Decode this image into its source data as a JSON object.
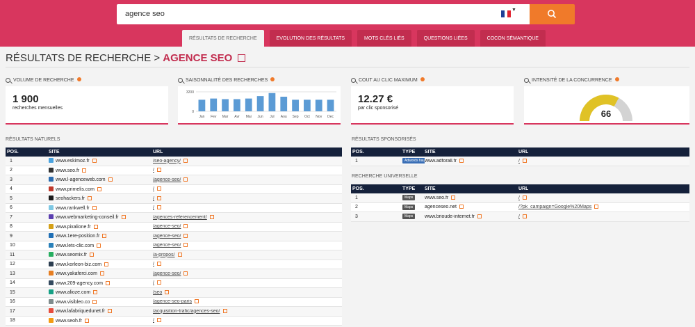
{
  "search": {
    "query": "agence seo"
  },
  "colors": {
    "brand": "#d8365e",
    "accent": "#f07a2a",
    "dark": "#15213b",
    "bar": "#5b9bd5"
  },
  "tabs": [
    "Résultats de recherche",
    "Evolution des résultats",
    "Mots clés liés",
    "Questions liées",
    "Cocon sémantique"
  ],
  "page": {
    "prefix": "RÉSULTATS DE RECHERCHE >",
    "keyword": "AGENCE SEO"
  },
  "metrics": {
    "volume": {
      "label": "VOLUME DE RECHERCHE",
      "value": "1 900",
      "sub": "recherches mensuelles"
    },
    "season": {
      "label": "SAISONNALITÉ DES RECHERCHES"
    },
    "cpc": {
      "label": "COUT AU CLIC MAXIMUM",
      "value": "12.27 €",
      "sub": "par clic sponsorisé"
    },
    "competition": {
      "label": "INTENSITÉ DE LA CONCURRENCE",
      "value": "66"
    }
  },
  "chart_data": {
    "type": "bar",
    "categories": [
      "Jan",
      "Fev",
      "Mar",
      "Avr",
      "Mai",
      "Jun",
      "Jul",
      "Aou",
      "Sep",
      "Oct",
      "Nov",
      "Dec"
    ],
    "values": [
      1900,
      2100,
      2000,
      2000,
      2100,
      2500,
      3000,
      2400,
      1900,
      1900,
      1900,
      1900
    ],
    "ylim": [
      0,
      3200
    ],
    "yticks": [
      0,
      3200
    ]
  },
  "natural": {
    "title": "RÉSULTATS NATURELS",
    "headers": [
      "POS.",
      "SITE",
      "URL"
    ],
    "rows": [
      {
        "pos": "1",
        "site": "www.eskimoz.fr",
        "url": "/seo-agency/",
        "color": "#4aa3df"
      },
      {
        "pos": "2",
        "site": "www.seo.fr",
        "url": "/",
        "color": "#333333"
      },
      {
        "pos": "3",
        "site": "www.l-agenceweb.com",
        "url": "/agence-seo/",
        "color": "#2b6cb0"
      },
      {
        "pos": "4",
        "site": "www.primelis.com",
        "url": "/",
        "color": "#c0392b"
      },
      {
        "pos": "5",
        "site": "seohackers.fr",
        "url": "/",
        "color": "#1a1a1a"
      },
      {
        "pos": "6",
        "site": "www.rankwell.fr",
        "url": "/",
        "color": "#7ec8e3"
      },
      {
        "pos": "7",
        "site": "www.webmarketing-conseil.fr",
        "url": "/agences-referencement/",
        "color": "#5b3fb0"
      },
      {
        "pos": "8",
        "site": "www.pixalione.fr",
        "url": "/agence-seo/",
        "color": "#d4a017"
      },
      {
        "pos": "9",
        "site": "www.1ere-position.fr",
        "url": "/agence-seo/",
        "color": "#1f6fb5"
      },
      {
        "pos": "10",
        "site": "www.lets-clic.com",
        "url": "/agence-seo/",
        "color": "#2980b9"
      },
      {
        "pos": "11",
        "site": "www.seomix.fr",
        "url": "/a-propos/",
        "color": "#27ae60"
      },
      {
        "pos": "12",
        "site": "www.korleon-biz.com",
        "url": "/",
        "color": "#2c3e50"
      },
      {
        "pos": "13",
        "site": "www.yakaferci.com",
        "url": "/agence-seo/",
        "color": "#e67e22"
      },
      {
        "pos": "14",
        "site": "www.209-agency.com",
        "url": "/",
        "color": "#34495e"
      },
      {
        "pos": "15",
        "site": "www.alioze.com",
        "url": "/seo",
        "color": "#16a085"
      },
      {
        "pos": "16",
        "site": "www.visibleo.co",
        "url": "/agence-seo-paris",
        "color": "#7f8c8d"
      },
      {
        "pos": "17",
        "site": "www.lafabriquedunet.fr",
        "url": "/acquisition-trafic/agences-seo/",
        "color": "#e74c3c"
      },
      {
        "pos": "18",
        "site": "www.seoh.fr",
        "url": "/",
        "color": "#f39c12"
      }
    ]
  },
  "sponsored": {
    "title": "RÉSULTATS SPONSORISÉS",
    "headers": [
      "POS.",
      "TYPE",
      "SITE",
      "URL"
    ],
    "rows": [
      {
        "pos": "1",
        "type": "Adwords haut",
        "site": "www.adforall.fr",
        "url": "/"
      }
    ]
  },
  "universal": {
    "title": "RECHERCHE UNIVERSELLE",
    "headers": [
      "POS.",
      "TYPE",
      "SITE",
      "URL"
    ],
    "rows": [
      {
        "pos": "1",
        "type": "Maps",
        "site": "www.seo.fr",
        "url": "/"
      },
      {
        "pos": "2",
        "type": "Maps",
        "site": "agenceseo.net",
        "url": "/?pk_campaign=Google%20Maps"
      },
      {
        "pos": "3",
        "type": "Maps",
        "site": "www.brioude-internet.fr",
        "url": "/"
      }
    ]
  }
}
